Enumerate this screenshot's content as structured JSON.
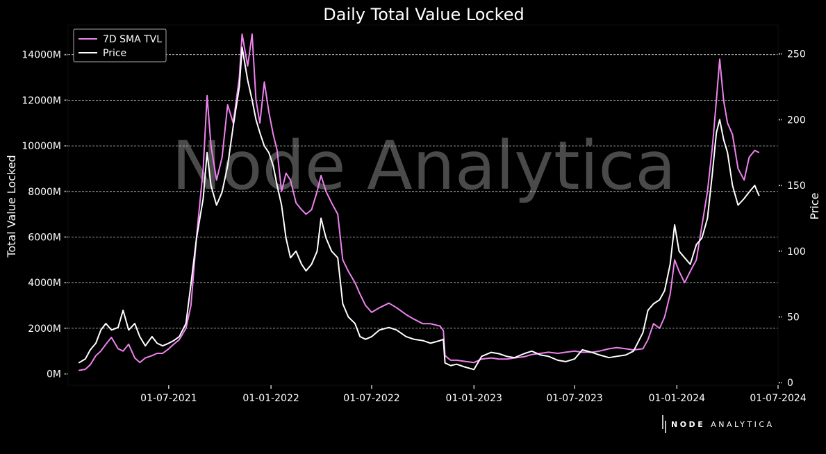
{
  "chart_data": {
    "type": "line",
    "title": "Daily Total Value Locked",
    "ylabel": "Total Value Locked",
    "y2label": "Price",
    "legend": {
      "placement": "top-left",
      "entries": [
        "7D SMA TVL",
        "Price"
      ]
    },
    "grid": true,
    "ylim": [
      -500,
      15300
    ],
    "y2lim": [
      -2,
      272
    ],
    "yticks": [
      0,
      2000,
      4000,
      6000,
      8000,
      10000,
      12000,
      14000
    ],
    "ytick_labels": [
      "0M",
      "2000M",
      "4000M",
      "6000M",
      "8000M",
      "10000M",
      "12000M",
      "14000M"
    ],
    "y2ticks": [
      0,
      50,
      100,
      150,
      200,
      250
    ],
    "y2tick_labels": [
      "0",
      "50",
      "100",
      "150",
      "200",
      "250"
    ],
    "xlim": [
      "2021-01-01",
      "2024-07-01"
    ],
    "xticks": [
      "2021-07-01",
      "2022-01-01",
      "2022-07-01",
      "2023-01-01",
      "2023-07-01",
      "2024-01-01",
      "2024-07-01"
    ],
    "xtick_labels": [
      "01-07-2021",
      "01-01-2022",
      "01-07-2022",
      "01-01-2023",
      "01-07-2023",
      "01-01-2024",
      "01-07-2024"
    ],
    "series": [
      {
        "name": "7D SMA TVL",
        "axis": "left",
        "color": "#ee82ee",
        "points": [
          [
            "2021-01-20",
            150
          ],
          [
            "2021-02-01",
            200
          ],
          [
            "2021-02-10",
            400
          ],
          [
            "2021-02-20",
            800
          ],
          [
            "2021-03-01",
            1000
          ],
          [
            "2021-03-10",
            1300
          ],
          [
            "2021-03-20",
            1600
          ],
          [
            "2021-04-01",
            1100
          ],
          [
            "2021-04-10",
            1000
          ],
          [
            "2021-04-20",
            1300
          ],
          [
            "2021-05-01",
            700
          ],
          [
            "2021-05-10",
            500
          ],
          [
            "2021-05-20",
            700
          ],
          [
            "2021-06-01",
            800
          ],
          [
            "2021-06-10",
            900
          ],
          [
            "2021-06-20",
            900
          ],
          [
            "2021-07-01",
            1100
          ],
          [
            "2021-07-10",
            1300
          ],
          [
            "2021-07-20",
            1500
          ],
          [
            "2021-08-01",
            2000
          ],
          [
            "2021-08-10",
            3000
          ],
          [
            "2021-08-20",
            6000
          ],
          [
            "2021-09-01",
            9000
          ],
          [
            "2021-09-08",
            12200
          ],
          [
            "2021-09-15",
            10000
          ],
          [
            "2021-09-25",
            8500
          ],
          [
            "2021-10-05",
            9500
          ],
          [
            "2021-10-15",
            11800
          ],
          [
            "2021-10-25",
            11000
          ],
          [
            "2021-11-05",
            13000
          ],
          [
            "2021-11-10",
            14900
          ],
          [
            "2021-11-20",
            13500
          ],
          [
            "2021-11-28",
            14900
          ],
          [
            "2021-12-05",
            12000
          ],
          [
            "2021-12-12",
            11000
          ],
          [
            "2021-12-20",
            12800
          ],
          [
            "2021-12-28",
            11500
          ],
          [
            "2022-01-05",
            10500
          ],
          [
            "2022-01-12",
            9800
          ],
          [
            "2022-01-20",
            8000
          ],
          [
            "2022-01-28",
            8800
          ],
          [
            "2022-02-05",
            8500
          ],
          [
            "2022-02-15",
            7500
          ],
          [
            "2022-02-25",
            7200
          ],
          [
            "2022-03-05",
            7000
          ],
          [
            "2022-03-15",
            7200
          ],
          [
            "2022-03-25",
            8000
          ],
          [
            "2022-04-01",
            8700
          ],
          [
            "2022-04-10",
            8000
          ],
          [
            "2022-04-20",
            7500
          ],
          [
            "2022-05-01",
            7000
          ],
          [
            "2022-05-10",
            5000
          ],
          [
            "2022-05-20",
            4500
          ],
          [
            "2022-06-01",
            4000
          ],
          [
            "2022-06-10",
            3500
          ],
          [
            "2022-06-20",
            3000
          ],
          [
            "2022-07-01",
            2700
          ],
          [
            "2022-07-15",
            2900
          ],
          [
            "2022-08-01",
            3100
          ],
          [
            "2022-08-15",
            2900
          ],
          [
            "2022-09-01",
            2600
          ],
          [
            "2022-09-15",
            2400
          ],
          [
            "2022-10-01",
            2200
          ],
          [
            "2022-10-15",
            2200
          ],
          [
            "2022-11-01",
            2100
          ],
          [
            "2022-11-07",
            1900
          ],
          [
            "2022-11-10",
            800
          ],
          [
            "2022-11-20",
            600
          ],
          [
            "2022-12-01",
            600
          ],
          [
            "2022-12-15",
            550
          ],
          [
            "2023-01-01",
            500
          ],
          [
            "2023-01-15",
            650
          ],
          [
            "2023-02-01",
            700
          ],
          [
            "2023-02-15",
            650
          ],
          [
            "2023-03-01",
            650
          ],
          [
            "2023-03-15",
            700
          ],
          [
            "2023-04-01",
            750
          ],
          [
            "2023-04-15",
            850
          ],
          [
            "2023-05-01",
            900
          ],
          [
            "2023-05-15",
            950
          ],
          [
            "2023-06-01",
            900
          ],
          [
            "2023-06-15",
            950
          ],
          [
            "2023-07-01",
            1000
          ],
          [
            "2023-07-15",
            950
          ],
          [
            "2023-08-01",
            950
          ],
          [
            "2023-08-15",
            1000
          ],
          [
            "2023-09-01",
            1100
          ],
          [
            "2023-09-15",
            1150
          ],
          [
            "2023-10-01",
            1100
          ],
          [
            "2023-10-15",
            1050
          ],
          [
            "2023-11-01",
            1100
          ],
          [
            "2023-11-10",
            1500
          ],
          [
            "2023-11-20",
            2200
          ],
          [
            "2023-12-01",
            2000
          ],
          [
            "2023-12-10",
            2500
          ],
          [
            "2023-12-20",
            3500
          ],
          [
            "2023-12-28",
            5000
          ],
          [
            "2024-01-05",
            4500
          ],
          [
            "2024-01-15",
            4000
          ],
          [
            "2024-01-25",
            4500
          ],
          [
            "2024-02-05",
            5000
          ],
          [
            "2024-02-15",
            6500
          ],
          [
            "2024-02-25",
            8000
          ],
          [
            "2024-03-05",
            10000
          ],
          [
            "2024-03-12",
            12000
          ],
          [
            "2024-03-18",
            13800
          ],
          [
            "2024-03-25",
            12000
          ],
          [
            "2024-04-01",
            11000
          ],
          [
            "2024-04-10",
            10500
          ],
          [
            "2024-04-20",
            9000
          ],
          [
            "2024-05-01",
            8500
          ],
          [
            "2024-05-10",
            9500
          ],
          [
            "2024-05-20",
            9800
          ],
          [
            "2024-05-28",
            9700
          ]
        ]
      },
      {
        "name": "Price",
        "axis": "right",
        "color": "#ffffff",
        "points": [
          [
            "2021-01-20",
            15
          ],
          [
            "2021-02-01",
            18
          ],
          [
            "2021-02-10",
            25
          ],
          [
            "2021-02-20",
            30
          ],
          [
            "2021-03-01",
            40
          ],
          [
            "2021-03-10",
            45
          ],
          [
            "2021-03-20",
            40
          ],
          [
            "2021-04-01",
            42
          ],
          [
            "2021-04-10",
            55
          ],
          [
            "2021-04-20",
            40
          ],
          [
            "2021-05-01",
            45
          ],
          [
            "2021-05-10",
            35
          ],
          [
            "2021-05-20",
            28
          ],
          [
            "2021-06-01",
            35
          ],
          [
            "2021-06-10",
            30
          ],
          [
            "2021-06-20",
            28
          ],
          [
            "2021-07-01",
            30
          ],
          [
            "2021-07-10",
            32
          ],
          [
            "2021-07-20",
            35
          ],
          [
            "2021-08-01",
            45
          ],
          [
            "2021-08-10",
            75
          ],
          [
            "2021-08-20",
            110
          ],
          [
            "2021-09-01",
            140
          ],
          [
            "2021-09-08",
            175
          ],
          [
            "2021-09-15",
            150
          ],
          [
            "2021-09-25",
            135
          ],
          [
            "2021-10-05",
            145
          ],
          [
            "2021-10-15",
            165
          ],
          [
            "2021-10-25",
            195
          ],
          [
            "2021-11-05",
            225
          ],
          [
            "2021-11-10",
            255
          ],
          [
            "2021-11-20",
            230
          ],
          [
            "2021-11-28",
            215
          ],
          [
            "2021-12-05",
            200
          ],
          [
            "2021-12-12",
            190
          ],
          [
            "2021-12-20",
            180
          ],
          [
            "2021-12-28",
            175
          ],
          [
            "2022-01-05",
            165
          ],
          [
            "2022-01-12",
            150
          ],
          [
            "2022-01-20",
            135
          ],
          [
            "2022-01-28",
            110
          ],
          [
            "2022-02-05",
            95
          ],
          [
            "2022-02-15",
            100
          ],
          [
            "2022-02-25",
            90
          ],
          [
            "2022-03-05",
            85
          ],
          [
            "2022-03-15",
            90
          ],
          [
            "2022-03-25",
            100
          ],
          [
            "2022-04-01",
            125
          ],
          [
            "2022-04-10",
            110
          ],
          [
            "2022-04-20",
            100
          ],
          [
            "2022-05-01",
            95
          ],
          [
            "2022-05-10",
            60
          ],
          [
            "2022-05-20",
            50
          ],
          [
            "2022-06-01",
            45
          ],
          [
            "2022-06-10",
            35
          ],
          [
            "2022-06-20",
            33
          ],
          [
            "2022-07-01",
            35
          ],
          [
            "2022-07-15",
            40
          ],
          [
            "2022-08-01",
            42
          ],
          [
            "2022-08-15",
            40
          ],
          [
            "2022-09-01",
            35
          ],
          [
            "2022-09-15",
            33
          ],
          [
            "2022-10-01",
            32
          ],
          [
            "2022-10-15",
            30
          ],
          [
            "2022-11-01",
            32
          ],
          [
            "2022-11-07",
            33
          ],
          [
            "2022-11-10",
            15
          ],
          [
            "2022-11-20",
            13
          ],
          [
            "2022-12-01",
            14
          ],
          [
            "2022-12-15",
            12
          ],
          [
            "2023-01-01",
            10
          ],
          [
            "2023-01-15",
            20
          ],
          [
            "2023-02-01",
            23
          ],
          [
            "2023-02-15",
            22
          ],
          [
            "2023-03-01",
            20
          ],
          [
            "2023-03-15",
            19
          ],
          [
            "2023-04-01",
            22
          ],
          [
            "2023-04-15",
            24
          ],
          [
            "2023-05-01",
            21
          ],
          [
            "2023-05-15",
            20
          ],
          [
            "2023-06-01",
            17
          ],
          [
            "2023-06-15",
            16
          ],
          [
            "2023-07-01",
            18
          ],
          [
            "2023-07-15",
            25
          ],
          [
            "2023-08-01",
            23
          ],
          [
            "2023-08-15",
            21
          ],
          [
            "2023-09-01",
            19
          ],
          [
            "2023-09-15",
            20
          ],
          [
            "2023-10-01",
            21
          ],
          [
            "2023-10-15",
            24
          ],
          [
            "2023-11-01",
            38
          ],
          [
            "2023-11-10",
            55
          ],
          [
            "2023-11-20",
            60
          ],
          [
            "2023-12-01",
            63
          ],
          [
            "2023-12-10",
            70
          ],
          [
            "2023-12-20",
            90
          ],
          [
            "2023-12-28",
            120
          ],
          [
            "2024-01-05",
            100
          ],
          [
            "2024-01-15",
            95
          ],
          [
            "2024-01-25",
            90
          ],
          [
            "2024-02-05",
            105
          ],
          [
            "2024-02-15",
            110
          ],
          [
            "2024-02-25",
            125
          ],
          [
            "2024-03-05",
            160
          ],
          [
            "2024-03-12",
            190
          ],
          [
            "2024-03-18",
            200
          ],
          [
            "2024-03-25",
            185
          ],
          [
            "2024-04-01",
            175
          ],
          [
            "2024-04-10",
            150
          ],
          [
            "2024-04-20",
            135
          ],
          [
            "2024-05-01",
            140
          ],
          [
            "2024-05-10",
            145
          ],
          [
            "2024-05-20",
            150
          ],
          [
            "2024-05-28",
            142
          ]
        ]
      }
    ]
  },
  "watermark": "Node Analytica",
  "brand": {
    "bold": "NODE",
    "light": "ANALYTICA"
  }
}
